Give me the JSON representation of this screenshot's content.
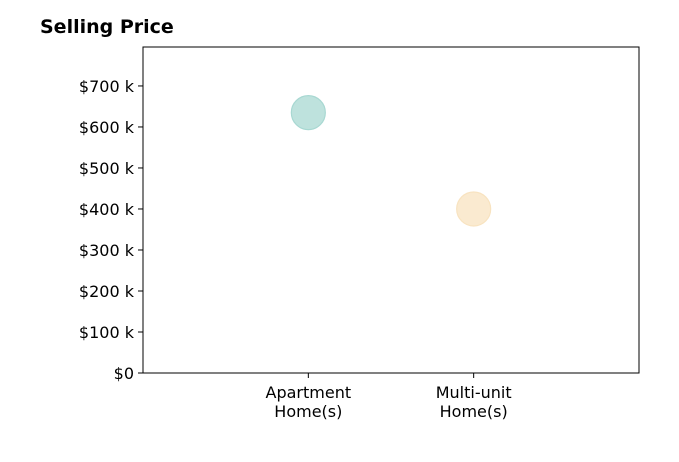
{
  "chart_data": {
    "type": "scatter",
    "title": "Selling Price",
    "categories": [
      "Apartment\nHome(s)",
      "Multi-unit\nHome(s)"
    ],
    "values": [
      635000,
      400000
    ],
    "y_ticks": [
      0,
      100000,
      200000,
      300000,
      400000,
      500000,
      600000,
      700000
    ],
    "y_tick_labels": [
      "$0",
      "$100 k",
      "$200 k",
      "$300 k",
      "$400 k",
      "$500 k",
      "$600 k",
      "$700 k"
    ],
    "ylim": [
      0,
      795000
    ],
    "xlabel": "",
    "ylabel": "",
    "grid": false,
    "colors": [
      "#a8d8d2",
      "#f8e3c0"
    ]
  }
}
